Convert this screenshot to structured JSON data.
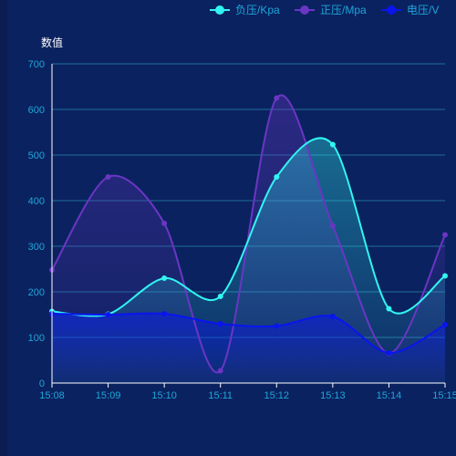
{
  "chart_data": {
    "type": "line",
    "title": "",
    "ylabel": "数值",
    "xlabel": "",
    "categories": [
      "15:08",
      "15:09",
      "15:10",
      "15:11",
      "15:12",
      "15:13",
      "15:14",
      "15:15"
    ],
    "ylim": [
      0,
      700
    ],
    "yticks": [
      0,
      100,
      200,
      300,
      400,
      500,
      600,
      700
    ],
    "smooth": true,
    "grid": true,
    "legend_position": "top-right",
    "series": [
      {
        "name": "负压/Kpa",
        "color": "#31f5f0",
        "area": true,
        "values": [
          157,
          151,
          230,
          190,
          452,
          523,
          163,
          235
        ]
      },
      {
        "name": "正压/Mpa",
        "color": "#6a36c4",
        "area": true,
        "values": [
          248,
          452,
          350,
          27,
          625,
          345,
          65,
          325
        ]
      },
      {
        "name": "电压/V",
        "color": "#0a14ef",
        "area": true,
        "values": [
          152,
          150,
          152,
          130,
          125,
          146,
          66,
          128
        ]
      }
    ]
  }
}
